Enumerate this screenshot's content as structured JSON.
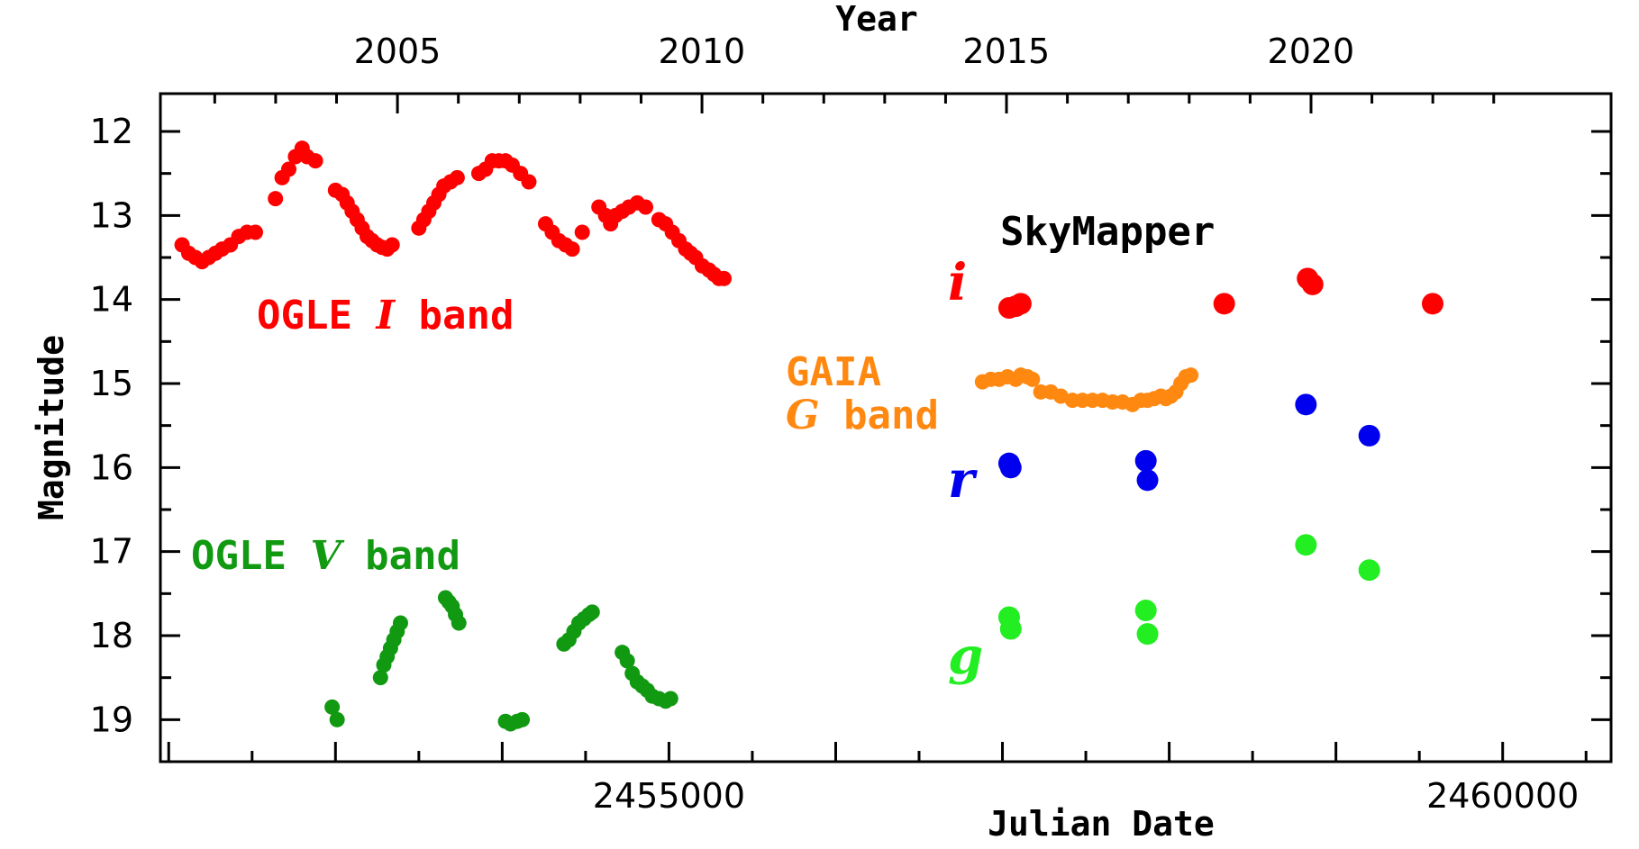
{
  "chart_data": {
    "type": "scatter",
    "xlabel": "Julian Date",
    "ylabel": "Magnitude",
    "top_axis_label": "Year",
    "xlim": [
      2451950,
      2460650
    ],
    "ylim": [
      19.5,
      11.55
    ],
    "y_inverted": true,
    "x_tick_labels": [
      {
        "value": 2455000,
        "label": "2455000"
      },
      {
        "value": 2460000,
        "label": "2460000"
      }
    ],
    "y_tick_labels": [
      {
        "value": 12,
        "label": "12"
      },
      {
        "value": 13,
        "label": "13"
      },
      {
        "value": 14,
        "label": "14"
      },
      {
        "value": 15,
        "label": "15"
      },
      {
        "value": 16,
        "label": "16"
      },
      {
        "value": 17,
        "label": "17"
      },
      {
        "value": 18,
        "label": "18"
      },
      {
        "value": 19,
        "label": "19"
      }
    ],
    "top_tick_labels": [
      {
        "jd": 2453371,
        "label": "2005"
      },
      {
        "jd": 2455197,
        "label": "2010"
      },
      {
        "jd": 2457023,
        "label": "2015"
      },
      {
        "jd": 2458850,
        "label": "2020"
      }
    ],
    "annotations": {
      "ogle_i_pre": "OGLE ",
      "ogle_i_sym": "I",
      "ogle_i_post": " band",
      "ogle_v_pre": "OGLE ",
      "ogle_v_sym": "V",
      "ogle_v_post": " band",
      "gaia_line1": "GAIA",
      "gaia_sym": "G",
      "gaia_post": " band",
      "skymapper": "SkyMapper",
      "sm_i": "i",
      "sm_r": "r",
      "sm_g": "g"
    },
    "series": [
      {
        "name": "OGLE I band",
        "color": "#ff0000",
        "x": [
          2452080,
          2452120,
          2452160,
          2452200,
          2452240,
          2452280,
          2452320,
          2452370,
          2452420,
          2452470,
          2452520,
          2452640,
          2452680,
          2452720,
          2452760,
          2452800,
          2452830,
          2452880,
          2453000,
          2453040,
          2453070,
          2453100,
          2453130,
          2453160,
          2453190,
          2453220,
          2453250,
          2453280,
          2453310,
          2453340,
          2453500,
          2453530,
          2453560,
          2453590,
          2453620,
          2453650,
          2453690,
          2453730,
          2453860,
          2453900,
          2453940,
          2453980,
          2454020,
          2454060,
          2454110,
          2454160,
          2454260,
          2454300,
          2454340,
          2454380,
          2454420,
          2454480,
          2454580,
          2454620,
          2454650,
          2454680,
          2454720,
          2454760,
          2454810,
          2454860,
          2454940,
          2454980,
          2455020,
          2455060,
          2455100,
          2455130,
          2455160,
          2455200,
          2455240,
          2455270,
          2455300,
          2455330
        ],
        "y": [
          13.35,
          13.45,
          13.5,
          13.55,
          13.5,
          13.45,
          13.4,
          13.35,
          13.25,
          13.2,
          13.2,
          12.8,
          12.55,
          12.45,
          12.3,
          12.2,
          12.3,
          12.35,
          12.7,
          12.75,
          12.85,
          12.95,
          13.05,
          13.15,
          13.25,
          13.3,
          13.35,
          13.38,
          13.4,
          13.35,
          13.15,
          13.05,
          12.95,
          12.85,
          12.75,
          12.65,
          12.6,
          12.55,
          12.5,
          12.45,
          12.35,
          12.35,
          12.35,
          12.4,
          12.5,
          12.6,
          13.1,
          13.2,
          13.3,
          13.35,
          13.4,
          13.2,
          12.9,
          13.0,
          13.1,
          13.0,
          12.95,
          12.9,
          12.85,
          12.9,
          13.05,
          13.1,
          13.2,
          13.3,
          13.4,
          13.45,
          13.5,
          13.6,
          13.65,
          13.7,
          13.75,
          13.75
        ]
      },
      {
        "name": "OGLE V band",
        "color": "#119911",
        "x": [
          2452980,
          2453010,
          2453270,
          2453290,
          2453310,
          2453330,
          2453350,
          2453370,
          2453390,
          2453660,
          2453680,
          2453700,
          2453720,
          2453740,
          2454020,
          2454050,
          2454090,
          2454120,
          2454370,
          2454400,
          2454430,
          2454460,
          2454490,
          2454520,
          2454540,
          2454720,
          2454750,
          2454780,
          2454810,
          2454840,
          2454870,
          2454900,
          2454940,
          2454980,
          2455010
        ],
        "y": [
          18.85,
          19.0,
          18.5,
          18.35,
          18.25,
          18.15,
          18.05,
          17.95,
          17.85,
          17.55,
          17.6,
          17.65,
          17.75,
          17.85,
          19.02,
          19.05,
          19.02,
          19.0,
          18.1,
          18.05,
          17.95,
          17.85,
          17.8,
          17.75,
          17.72,
          18.2,
          18.3,
          18.45,
          18.55,
          18.6,
          18.65,
          18.72,
          18.75,
          18.78,
          18.75
        ]
      },
      {
        "name": "GAIA G band",
        "color": "#ff8811",
        "x": [
          2456880,
          2456930,
          2456980,
          2457030,
          2457080,
          2457110,
          2457150,
          2457180,
          2457230,
          2457290,
          2457350,
          2457420,
          2457480,
          2457540,
          2457600,
          2457660,
          2457720,
          2457780,
          2457830,
          2457870,
          2457910,
          2457950,
          2457980,
          2458010,
          2458040,
          2458070,
          2458100,
          2458130
        ],
        "y": [
          14.98,
          14.95,
          14.95,
          14.92,
          14.95,
          14.9,
          14.92,
          14.95,
          15.1,
          15.1,
          15.15,
          15.2,
          15.2,
          15.2,
          15.2,
          15.22,
          15.22,
          15.25,
          15.2,
          15.2,
          15.18,
          15.15,
          15.18,
          15.15,
          15.1,
          15.0,
          14.92,
          14.9
        ]
      },
      {
        "name": "SkyMapper i",
        "color": "#ff0000",
        "x": [
          2457040,
          2457080,
          2457110,
          2458330,
          2458830,
          2458860,
          2459580
        ],
        "y": [
          14.1,
          14.08,
          14.05,
          14.05,
          13.75,
          13.82,
          14.05
        ]
      },
      {
        "name": "SkyMapper r",
        "color": "#0000ee",
        "x": [
          2457040,
          2457050,
          2457860,
          2457870,
          2458820,
          2459200
        ],
        "y": [
          15.95,
          16.0,
          15.92,
          16.15,
          15.25,
          15.62
        ]
      },
      {
        "name": "SkyMapper g",
        "color": "#22ee22",
        "x": [
          2457040,
          2457050,
          2457860,
          2457870,
          2458820,
          2459200
        ],
        "y": [
          17.78,
          17.92,
          17.7,
          17.98,
          16.92,
          17.22
        ]
      }
    ]
  }
}
